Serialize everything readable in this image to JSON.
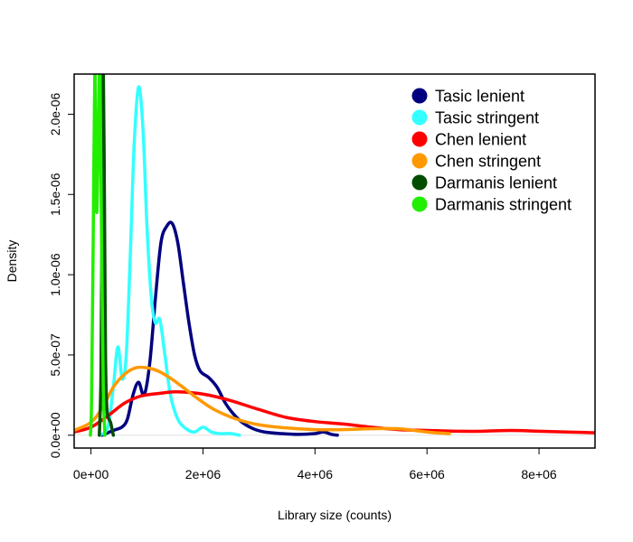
{
  "chart_data": {
    "type": "line",
    "title": "",
    "xlabel": "Library size (counts)",
    "ylabel": "Density",
    "xlim": [
      -300000,
      9000000
    ],
    "ylim": [
      -8e-08,
      2.25e-06
    ],
    "x_ticks": [
      {
        "value": 0,
        "label": "0e+00"
      },
      {
        "value": 2000000,
        "label": "2e+06"
      },
      {
        "value": 4000000,
        "label": "4e+06"
      },
      {
        "value": 6000000,
        "label": "6e+06"
      },
      {
        "value": 8000000,
        "label": "8e+06"
      }
    ],
    "y_ticks": [
      {
        "value": 0,
        "label": "0.0e+00"
      },
      {
        "value": 5e-07,
        "label": "5.0e-07"
      },
      {
        "value": 1e-06,
        "label": "1.0e-06"
      },
      {
        "value": 1.5e-06,
        "label": "1.5e-06"
      },
      {
        "value": 2e-06,
        "label": "2.0e-06"
      }
    ],
    "legend_position": "top-right",
    "series": [
      {
        "name": "Tasic lenient",
        "color": "#000080",
        "points": [
          [
            200000,
            0
          ],
          [
            400000,
            3e-08
          ],
          [
            550000,
            5e-08
          ],
          [
            650000,
            1e-07
          ],
          [
            750000,
            2.5e-07
          ],
          [
            850000,
            3.3e-07
          ],
          [
            950000,
            2.5e-07
          ],
          [
            1050000,
            4.5e-07
          ],
          [
            1150000,
            8.5e-07
          ],
          [
            1250000,
            1.2e-06
          ],
          [
            1350000,
            1.3e-06
          ],
          [
            1450000,
            1.32e-06
          ],
          [
            1550000,
            1.2e-06
          ],
          [
            1650000,
            9.5e-07
          ],
          [
            1750000,
            7e-07
          ],
          [
            1850000,
            5e-07
          ],
          [
            1950000,
            4e-07
          ],
          [
            2100000,
            3.6e-07
          ],
          [
            2250000,
            3e-07
          ],
          [
            2400000,
            2e-07
          ],
          [
            2550000,
            1.3e-07
          ],
          [
            2700000,
            8e-08
          ],
          [
            2900000,
            4e-08
          ],
          [
            3100000,
            2e-08
          ],
          [
            3400000,
            1e-08
          ],
          [
            3700000,
            5e-09
          ],
          [
            4000000,
            1e-08
          ],
          [
            4150000,
            2e-08
          ],
          [
            4300000,
            5e-09
          ],
          [
            4400000,
            0
          ]
        ]
      },
      {
        "name": "Tasic stringent",
        "color": "#33ffff",
        "points": [
          [
            150000,
            0
          ],
          [
            300000,
            5e-08
          ],
          [
            400000,
            3e-07
          ],
          [
            480000,
            5.5e-07
          ],
          [
            560000,
            3.5e-07
          ],
          [
            630000,
            5e-07
          ],
          [
            700000,
            1.1e-06
          ],
          [
            770000,
            1.8e-06
          ],
          [
            850000,
            2.17e-06
          ],
          [
            930000,
            1.9e-06
          ],
          [
            1000000,
            1.3e-06
          ],
          [
            1080000,
            8.5e-07
          ],
          [
            1150000,
            7e-07
          ],
          [
            1230000,
            7.2e-07
          ],
          [
            1320000,
            5e-07
          ],
          [
            1420000,
            2.5e-07
          ],
          [
            1550000,
            1e-07
          ],
          [
            1700000,
            4e-08
          ],
          [
            1850000,
            2e-08
          ],
          [
            2000000,
            5e-08
          ],
          [
            2150000,
            2e-08
          ],
          [
            2300000,
            1e-08
          ],
          [
            2500000,
            1e-08
          ],
          [
            2650000,
            0
          ]
        ]
      },
      {
        "name": "Chen lenient",
        "color": "#ff0000",
        "points": [
          [
            -300000,
            2e-08
          ],
          [
            0,
            5e-08
          ],
          [
            300000,
            1.2e-07
          ],
          [
            600000,
            2e-07
          ],
          [
            900000,
            2.45e-07
          ],
          [
            1200000,
            2.6e-07
          ],
          [
            1500000,
            2.7e-07
          ],
          [
            1800000,
            2.65e-07
          ],
          [
            2100000,
            2.5e-07
          ],
          [
            2500000,
            2.15e-07
          ],
          [
            3000000,
            1.6e-07
          ],
          [
            3500000,
            1.1e-07
          ],
          [
            4000000,
            8.5e-08
          ],
          [
            4500000,
            7e-08
          ],
          [
            5000000,
            5e-08
          ],
          [
            5500000,
            3.5e-08
          ],
          [
            6000000,
            3e-08
          ],
          [
            6500000,
            2.5e-08
          ],
          [
            7000000,
            2.5e-08
          ],
          [
            7500000,
            3e-08
          ],
          [
            8000000,
            2.5e-08
          ],
          [
            8500000,
            2e-08
          ],
          [
            9000000,
            1.5e-08
          ]
        ]
      },
      {
        "name": "Chen stringent",
        "color": "#ff9900",
        "points": [
          [
            -300000,
            3e-08
          ],
          [
            0,
            8e-08
          ],
          [
            200000,
            1.7e-07
          ],
          [
            400000,
            3e-07
          ],
          [
            600000,
            3.8e-07
          ],
          [
            800000,
            4.2e-07
          ],
          [
            1000000,
            4.2e-07
          ],
          [
            1200000,
            4e-07
          ],
          [
            1400000,
            3.6e-07
          ],
          [
            1600000,
            3.1e-07
          ],
          [
            1900000,
            2.3e-07
          ],
          [
            2200000,
            1.6e-07
          ],
          [
            2600000,
            1e-07
          ],
          [
            3000000,
            6.5e-08
          ],
          [
            3500000,
            4.5e-08
          ],
          [
            4000000,
            3.5e-08
          ],
          [
            4500000,
            3.5e-08
          ],
          [
            5000000,
            4e-08
          ],
          [
            5500000,
            4e-08
          ],
          [
            6000000,
            2e-08
          ],
          [
            6400000,
            1e-08
          ]
        ]
      },
      {
        "name": "Darmanis lenient",
        "color": "#004d00",
        "points": [
          [
            150000,
            0
          ],
          [
            180000,
            4e-07
          ],
          [
            200000,
            1.5e-06
          ],
          [
            220000,
            2.3e-06
          ],
          [
            240000,
            1.5e-06
          ],
          [
            260000,
            5e-07
          ],
          [
            280000,
            2e-07
          ],
          [
            300000,
            1.2e-07
          ],
          [
            350000,
            8e-08
          ],
          [
            380000,
            3e-08
          ],
          [
            400000,
            0
          ]
        ]
      },
      {
        "name": "Darmanis stringent",
        "color": "#22ee00",
        "points": [
          [
            -10000,
            0
          ],
          [
            10000,
            2e-07
          ],
          [
            40000,
            1.2e-06
          ],
          [
            70000,
            2.3e-06
          ],
          [
            100000,
            1.4e-06
          ],
          [
            130000,
            1.8e-06
          ],
          [
            160000,
            2.3e-06
          ],
          [
            190000,
            1.2e-06
          ],
          [
            220000,
            3e-07
          ],
          [
            250000,
            0
          ]
        ]
      }
    ]
  }
}
